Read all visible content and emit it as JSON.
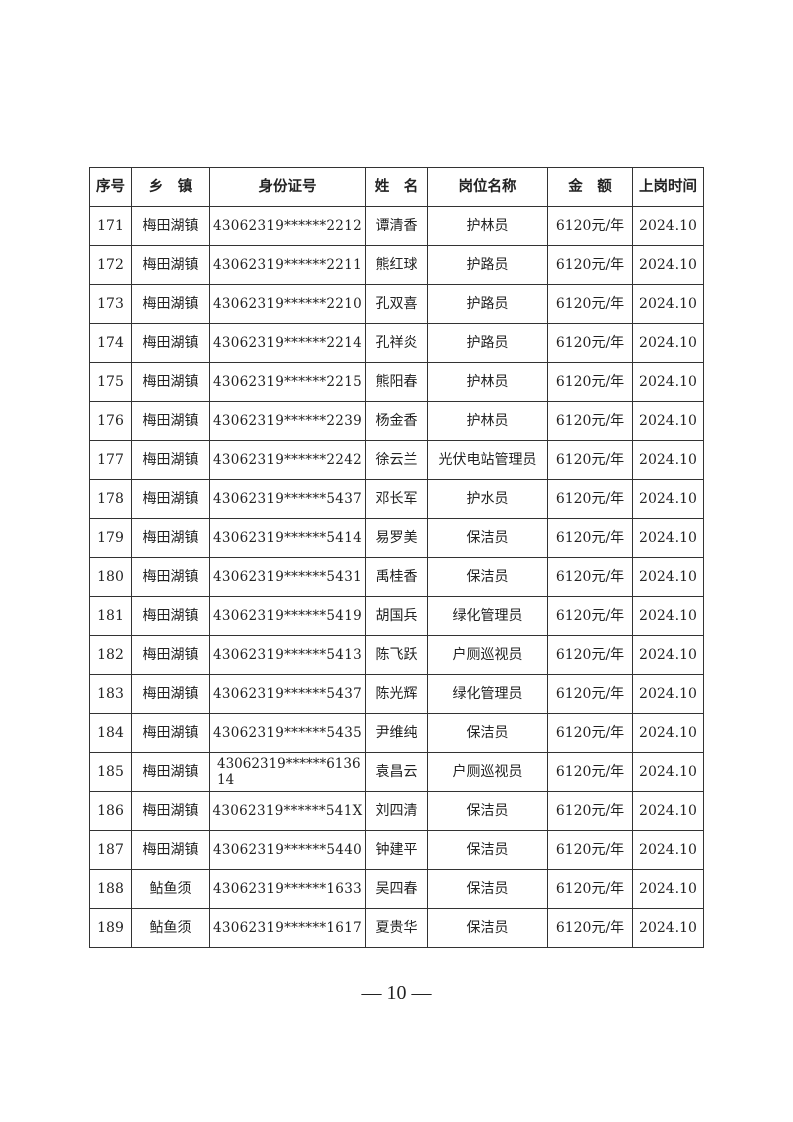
{
  "table": {
    "headers": [
      "序号",
      "乡　镇",
      "身份证号",
      "姓　名",
      "岗位名称",
      "金　额",
      "上岗时间"
    ],
    "rows": [
      [
        "171",
        "梅田湖镇",
        "43062319******2212",
        "谭清香",
        "护林员",
        "6120元/年",
        "2024.10"
      ],
      [
        "172",
        "梅田湖镇",
        "43062319******2211",
        "熊红球",
        "护路员",
        "6120元/年",
        "2024.10"
      ],
      [
        "173",
        "梅田湖镇",
        "43062319******2210",
        "孔双喜",
        "护路员",
        "6120元/年",
        "2024.10"
      ],
      [
        "174",
        "梅田湖镇",
        "43062319******2214",
        "孔祥炎",
        "护路员",
        "6120元/年",
        "2024.10"
      ],
      [
        "175",
        "梅田湖镇",
        "43062319******2215",
        "熊阳春",
        "护林员",
        "6120元/年",
        "2024.10"
      ],
      [
        "176",
        "梅田湖镇",
        "43062319******2239",
        "杨金香",
        "护林员",
        "6120元/年",
        "2024.10"
      ],
      [
        "177",
        "梅田湖镇",
        "43062319******2242",
        "徐云兰",
        "光伏电站管理员",
        "6120元/年",
        "2024.10"
      ],
      [
        "178",
        "梅田湖镇",
        "43062319******5437",
        "邓长军",
        "护水员",
        "6120元/年",
        "2024.10"
      ],
      [
        "179",
        "梅田湖镇",
        "43062319******5414",
        "易罗美",
        "保洁员",
        "6120元/年",
        "2024.10"
      ],
      [
        "180",
        "梅田湖镇",
        "43062319******5431",
        "禹桂香",
        "保洁员",
        "6120元/年",
        "2024.10"
      ],
      [
        "181",
        "梅田湖镇",
        "43062319******5419",
        "胡国兵",
        "绿化管理员",
        "6120元/年",
        "2024.10"
      ],
      [
        "182",
        "梅田湖镇",
        "43062319******5413",
        "陈飞跃",
        "户厕巡视员",
        "6120元/年",
        "2024.10"
      ],
      [
        "183",
        "梅田湖镇",
        "43062319******5437",
        "陈光辉",
        "绿化管理员",
        "6120元/年",
        "2024.10"
      ],
      [
        "184",
        "梅田湖镇",
        "43062319******5435",
        "尹维纯",
        "保洁员",
        "6120元/年",
        "2024.10"
      ],
      [
        "185",
        "梅田湖镇",
        "43062319******613614",
        "袁昌云",
        "户厕巡视员",
        "6120元/年",
        "2024.10"
      ],
      [
        "186",
        "梅田湖镇",
        "43062319******541X",
        "刘四清",
        "保洁员",
        "6120元/年",
        "2024.10"
      ],
      [
        "187",
        "梅田湖镇",
        "43062319******5440",
        "钟建平",
        "保洁员",
        "6120元/年",
        "2024.10"
      ],
      [
        "188",
        "鲇鱼须",
        "43062319******1633",
        "吴四春",
        "保洁员",
        "6120元/年",
        "2024.10"
      ],
      [
        "189",
        "鲇鱼须",
        "43062319******1617",
        "夏贵华",
        "保洁员",
        "6120元/年",
        "2024.10"
      ]
    ]
  },
  "page_number": "— 10 —"
}
